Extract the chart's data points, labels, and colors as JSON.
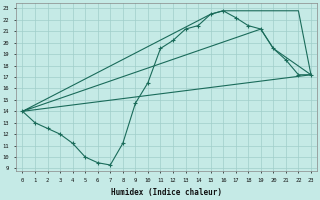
{
  "xlabel": "Humidex (Indice chaleur)",
  "xlim": [
    -0.5,
    23.5
  ],
  "ylim": [
    8.8,
    23.5
  ],
  "yticks": [
    9,
    10,
    11,
    12,
    13,
    14,
    15,
    16,
    17,
    18,
    19,
    20,
    21,
    22,
    23
  ],
  "xticks": [
    0,
    1,
    2,
    3,
    4,
    5,
    6,
    7,
    8,
    9,
    10,
    11,
    12,
    13,
    14,
    15,
    16,
    17,
    18,
    19,
    20,
    21,
    22,
    23
  ],
  "bg_color": "#c5eae6",
  "grid_color": "#a0ceca",
  "line_color": "#1a6b5a",
  "main_x": [
    0,
    1,
    2,
    3,
    4,
    5,
    6,
    7,
    8,
    9,
    10,
    11,
    12,
    13,
    14,
    15,
    16,
    17,
    18,
    19,
    20,
    21,
    22,
    23
  ],
  "main_y": [
    14.0,
    13.0,
    12.5,
    12.0,
    11.2,
    10.0,
    9.5,
    9.3,
    11.2,
    14.7,
    16.5,
    19.5,
    20.2,
    21.2,
    21.5,
    22.5,
    22.8,
    22.2,
    21.5,
    21.2,
    19.5,
    18.5,
    17.2,
    17.2
  ],
  "trend_x": [
    0,
    23
  ],
  "trend_y": [
    14.0,
    17.2
  ],
  "poly_x": [
    0,
    15,
    16,
    22,
    23,
    20,
    19,
    0
  ],
  "poly_y": [
    14.0,
    22.5,
    22.8,
    22.8,
    17.2,
    19.5,
    21.2,
    14.0
  ]
}
